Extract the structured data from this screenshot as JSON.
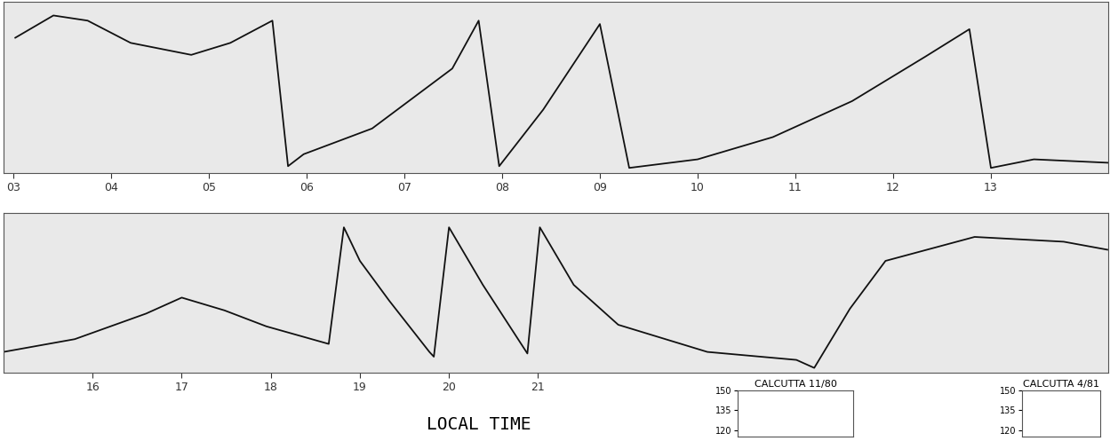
{
  "chart_data": [
    {
      "type": "line",
      "x": [
        3.02,
        3.41,
        3.76,
        4.2,
        4.82,
        5.22,
        5.65,
        5.81,
        5.97,
        6.67,
        7.49,
        7.76,
        7.97,
        8.42,
        9.0,
        9.3,
        10.0,
        10.77,
        11.58,
        12.33,
        12.78,
        13.0,
        13.44,
        14.2
      ],
      "values": [
        79,
        92,
        89,
        76,
        69,
        76,
        89,
        4,
        11,
        26,
        61,
        89,
        4,
        37,
        87,
        3,
        8,
        21,
        42,
        68,
        84,
        3,
        8,
        6
      ],
      "color": "#111111",
      "xlim": [
        2.9,
        14.2
      ],
      "xticks": [
        {
          "value": 3,
          "label": "03"
        },
        {
          "value": 4,
          "label": "04"
        },
        {
          "value": 5,
          "label": "05"
        },
        {
          "value": 6,
          "label": "06"
        },
        {
          "value": 7,
          "label": "07"
        },
        {
          "value": 8,
          "label": "08"
        },
        {
          "value": 9,
          "label": "09"
        },
        10,
        11,
        12,
        13
      ],
      "ylim": [
        0,
        100
      ],
      "tick_labels": "x"
    },
    {
      "type": "line",
      "xlabel": "LOCAL TIME",
      "x": [
        15.0,
        15.8,
        16.6,
        17.0,
        17.48,
        17.95,
        18.65,
        18.82,
        19.0,
        19.33,
        19.78,
        19.83,
        20.0,
        20.38,
        20.88,
        21.02,
        21.4,
        21.9,
        22.9,
        23.9,
        24.1,
        24.5,
        24.9,
        25.9,
        26.9,
        27.39
      ],
      "values": [
        13,
        21,
        37,
        47,
        39,
        29,
        18,
        91,
        70,
        45,
        13,
        10,
        91,
        55,
        12,
        91,
        55,
        30,
        13,
        8,
        3,
        40,
        70,
        85,
        82,
        77
      ],
      "color": "#111111",
      "xlim": [
        15,
        27.4
      ],
      "xticks": [
        16,
        17,
        18,
        19,
        20,
        21
      ],
      "ylim": [
        0,
        100
      ],
      "tick_labels": "x"
    },
    {
      "type": "line",
      "title": "CALCUTTA 11/80",
      "ylim": [
        115,
        150
      ],
      "yticks": [
        120,
        135,
        150
      ],
      "tick_labels": "y"
    },
    {
      "type": "line",
      "title": "CALCUTTA 4/81",
      "ylim": [
        115,
        150
      ],
      "yticks": [
        120,
        135,
        150
      ],
      "tick_labels": "y"
    }
  ]
}
